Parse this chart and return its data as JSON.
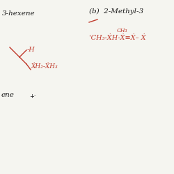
{
  "bg_color": "#f5f5f0",
  "red_color": "#c0392b",
  "black_color": "#1a1a1a",
  "left_title": "3-hexene",
  "left_bottom": "ene",
  "right_title": "(b)  2-Methyl-3",
  "right_ch3_sup": "CH₃",
  "right_structure": "'CH₃-ẊH-Ẋ≡Ẋ- Ẋ",
  "font_title": 7.5,
  "font_struct": 7.0,
  "font_small": 5.5
}
